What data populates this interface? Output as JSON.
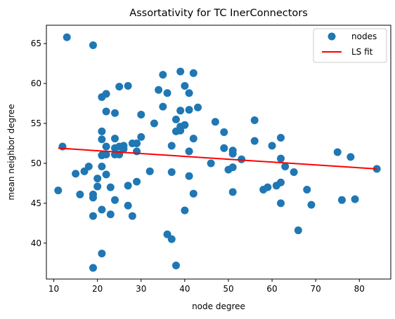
{
  "chart_data": {
    "type": "scatter",
    "title": "Assortativity for TC InerConnectors",
    "xlabel": "node degree",
    "ylabel": "mean neighbor degree",
    "xlim": [
      8.3,
      87.2
    ],
    "ylim": [
      35.5,
      67.3
    ],
    "xticks": [
      10,
      20,
      30,
      40,
      50,
      60,
      70,
      80
    ],
    "yticks": [
      40,
      45,
      50,
      55,
      60,
      65
    ],
    "grid": false,
    "legend_position": "top-right",
    "colors": {
      "points": "#1f77b4",
      "fit": "#ff0000"
    },
    "series": [
      {
        "name": "nodes",
        "kind": "scatter",
        "points": [
          [
            11,
            46.6
          ],
          [
            12,
            52.1
          ],
          [
            13,
            65.8
          ],
          [
            15,
            48.7
          ],
          [
            16,
            46.1
          ],
          [
            17,
            49.0
          ],
          [
            18,
            49.6
          ],
          [
            19,
            64.8
          ],
          [
            19,
            46.1
          ],
          [
            19,
            45.7
          ],
          [
            19,
            43.4
          ],
          [
            19,
            36.9
          ],
          [
            20,
            48.1
          ],
          [
            20,
            47.1
          ],
          [
            21,
            58.3
          ],
          [
            21,
            54.0
          ],
          [
            21,
            53.0
          ],
          [
            21,
            51.0
          ],
          [
            21,
            49.6
          ],
          [
            21,
            44.2
          ],
          [
            21,
            38.7
          ],
          [
            22,
            58.7
          ],
          [
            22,
            56.5
          ],
          [
            22,
            52.1
          ],
          [
            22,
            51.1
          ],
          [
            22,
            48.6
          ],
          [
            23,
            47.0
          ],
          [
            23,
            43.6
          ],
          [
            24,
            56.3
          ],
          [
            24,
            53.1
          ],
          [
            24,
            51.9
          ],
          [
            24,
            51.1
          ],
          [
            24,
            45.4
          ],
          [
            25,
            59.6
          ],
          [
            25,
            52.1
          ],
          [
            25,
            51.1
          ],
          [
            26,
            52.2
          ],
          [
            26,
            51.8
          ],
          [
            27,
            59.7
          ],
          [
            27,
            47.2
          ],
          [
            27,
            44.7
          ],
          [
            28,
            52.5
          ],
          [
            28,
            43.4
          ],
          [
            29,
            52.5
          ],
          [
            29,
            51.5
          ],
          [
            29,
            47.7
          ],
          [
            30,
            56.1
          ],
          [
            30,
            53.3
          ],
          [
            32,
            49.0
          ],
          [
            33,
            55.0
          ],
          [
            34,
            59.2
          ],
          [
            35,
            61.1
          ],
          [
            35,
            57.1
          ],
          [
            36,
            58.8
          ],
          [
            36,
            41.1
          ],
          [
            37,
            52.2
          ],
          [
            37,
            48.9
          ],
          [
            37,
            40.5
          ],
          [
            38,
            55.5
          ],
          [
            38,
            54.0
          ],
          [
            38,
            37.2
          ],
          [
            39,
            61.5
          ],
          [
            39,
            56.6
          ],
          [
            39,
            54.6
          ],
          [
            39,
            54.1
          ],
          [
            40,
            59.7
          ],
          [
            40,
            54.8
          ],
          [
            40,
            44.1
          ],
          [
            41,
            58.8
          ],
          [
            41,
            56.7
          ],
          [
            41,
            51.5
          ],
          [
            41,
            48.4
          ],
          [
            42,
            61.3
          ],
          [
            42,
            53.1
          ],
          [
            42,
            46.2
          ],
          [
            43,
            57.0
          ],
          [
            46,
            50.0
          ],
          [
            47,
            55.2
          ],
          [
            49,
            53.9
          ],
          [
            49,
            51.9
          ],
          [
            50,
            49.2
          ],
          [
            51,
            51.6
          ],
          [
            51,
            51.2
          ],
          [
            51,
            49.5
          ],
          [
            51,
            46.4
          ],
          [
            53,
            50.5
          ],
          [
            56,
            55.4
          ],
          [
            56,
            52.8
          ],
          [
            58,
            46.7
          ],
          [
            59,
            47.0
          ],
          [
            60,
            52.2
          ],
          [
            61,
            47.2
          ],
          [
            62,
            53.2
          ],
          [
            62,
            50.6
          ],
          [
            62,
            47.6
          ],
          [
            62,
            45.0
          ],
          [
            63,
            49.6
          ],
          [
            65,
            48.9
          ],
          [
            66,
            41.6
          ],
          [
            68,
            46.7
          ],
          [
            69,
            44.8
          ],
          [
            75,
            51.4
          ],
          [
            76,
            45.4
          ],
          [
            78,
            50.8
          ],
          [
            79,
            45.5
          ],
          [
            84,
            49.3
          ]
        ]
      },
      {
        "name": "LS fit",
        "kind": "line",
        "points": [
          [
            11,
            51.9
          ],
          [
            84,
            49.3
          ]
        ]
      }
    ]
  }
}
